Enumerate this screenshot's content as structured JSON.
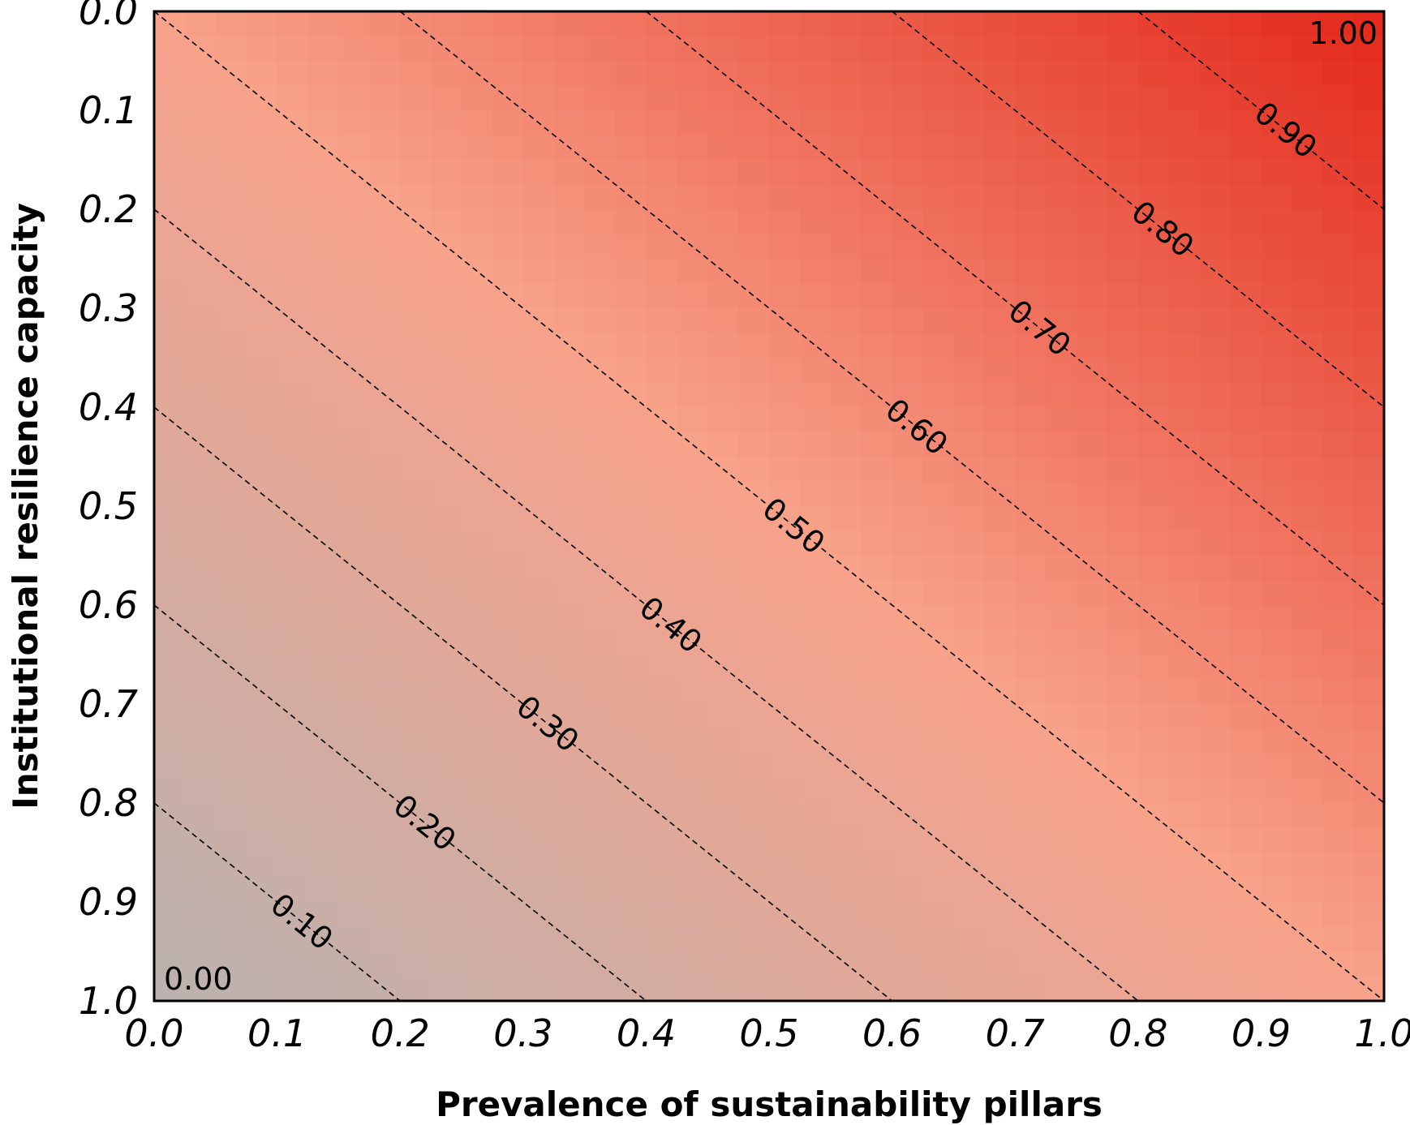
{
  "chart_data": {
    "type": "heatmap",
    "title": "",
    "xlabel": "Prevalence of sustainability pillars",
    "ylabel": "Institutional resilience capacity",
    "xlim": [
      0.0,
      1.0
    ],
    "ylim": [
      0.0,
      1.0
    ],
    "y_axis_inverted": true,
    "x_ticks": [
      "0.0",
      "0.1",
      "0.2",
      "0.3",
      "0.4",
      "0.5",
      "0.6",
      "0.7",
      "0.8",
      "0.9",
      "1.0"
    ],
    "y_ticks": [
      "0.0",
      "0.1",
      "0.2",
      "0.3",
      "0.4",
      "0.5",
      "0.6",
      "0.7",
      "0.8",
      "0.9",
      "1.0"
    ],
    "surface": "z = (x + (1 - y)) / 2",
    "colormap": {
      "low": "#bab2b0",
      "mid": "#f8a28a",
      "high": "#e3281a"
    },
    "grid": false,
    "contour_levels": [
      {
        "value": 0.1,
        "label": "0.10",
        "label_x": 0.12
      },
      {
        "value": 0.2,
        "label": "0.20",
        "label_x": 0.22
      },
      {
        "value": 0.3,
        "label": "0.30",
        "label_x": 0.32
      },
      {
        "value": 0.4,
        "label": "0.40",
        "label_x": 0.42
      },
      {
        "value": 0.5,
        "label": "0.50",
        "label_x": 0.52
      },
      {
        "value": 0.6,
        "label": "0.60",
        "label_x": 0.62
      },
      {
        "value": 0.7,
        "label": "0.70",
        "label_x": 0.72
      },
      {
        "value": 0.8,
        "label": "0.80",
        "label_x": 0.82
      },
      {
        "value": 0.9,
        "label": "0.90",
        "label_x": 0.92
      }
    ],
    "corner_labels": [
      {
        "text": "0.00",
        "x": 0.0,
        "y": 1.0
      },
      {
        "text": "1.00",
        "x": 1.0,
        "y": 0.0
      }
    ]
  }
}
